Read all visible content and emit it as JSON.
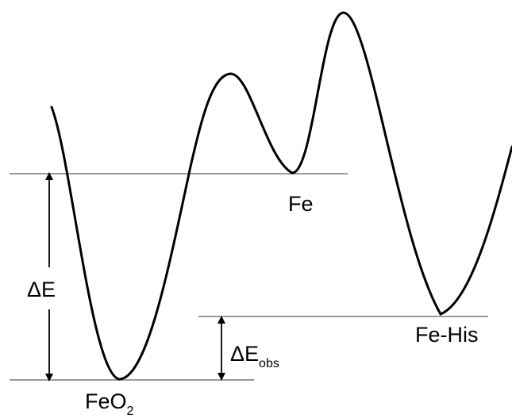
{
  "labels": {
    "fe": "Fe",
    "fe_his": "Fe-His",
    "feo2_main": "FeO",
    "feo2_sub": "2",
    "delta_e": "ΔE",
    "delta_e_obs_main": "ΔE",
    "delta_e_obs_sub": "obs"
  },
  "colors": {
    "curve": "#000000",
    "level_line": "#9a9a9a",
    "arrow": "#000000",
    "text": "#000000"
  }
}
